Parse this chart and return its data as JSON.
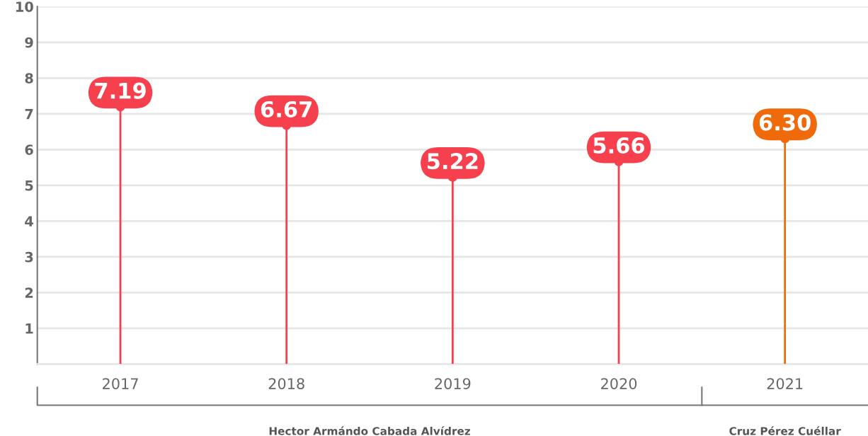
{
  "chart_data": {
    "type": "lollipop",
    "categories": [
      "2017",
      "2018",
      "2019",
      "2020",
      "2021"
    ],
    "values": [
      7.19,
      6.67,
      5.22,
      5.66,
      6.3
    ],
    "colors": [
      "#f7404e",
      "#f7404e",
      "#f7404e",
      "#f7404e",
      "#ee6a0a"
    ],
    "value_labels": [
      "7.19",
      "6.67",
      "5.22",
      "5.66",
      "6.30"
    ],
    "ylim": [
      0,
      10
    ],
    "yticks": [
      1,
      2,
      3,
      4,
      5,
      6,
      7,
      8,
      9,
      10
    ],
    "grid": "y",
    "marker": "circle",
    "annotations": [
      "Hector Armándo Cabada Alvídrez",
      "Cruz Pérez Cuéllar"
    ]
  }
}
